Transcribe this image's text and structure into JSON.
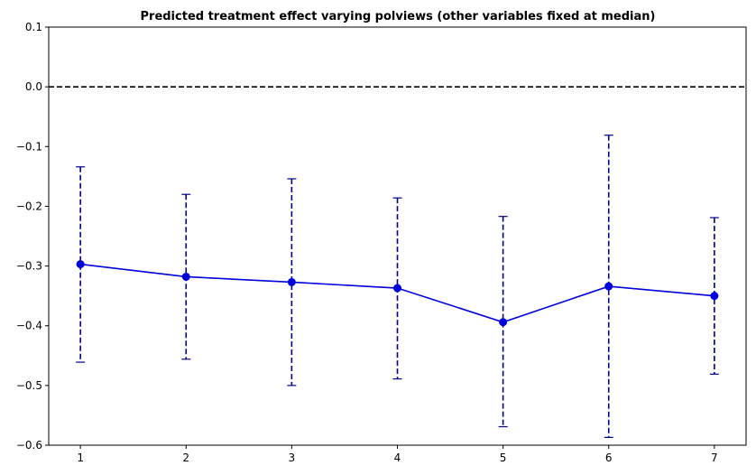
{
  "chart_data": {
    "type": "line",
    "title": "Predicted treatment effect varying polviews (other variables fixed at median)",
    "xlabel": "",
    "ylabel": "",
    "x": [
      1,
      2,
      3,
      4,
      5,
      6,
      7
    ],
    "xlim": [
      0.7,
      7.3
    ],
    "ylim": [
      -0.6,
      0.1
    ],
    "yticks": [
      0.1,
      0.0,
      -0.1,
      -0.2,
      -0.3,
      -0.4,
      -0.5,
      -0.6
    ],
    "ytick_labels": [
      "0.1",
      "0.0",
      "−0.1",
      "−0.2",
      "−0.3",
      "−0.4",
      "−0.5",
      "−0.6"
    ],
    "xtick_labels": [
      "1",
      "2",
      "3",
      "4",
      "5",
      "6",
      "7"
    ],
    "series": [
      {
        "values": [
          -0.297,
          -0.318,
          -0.327,
          -0.337,
          -0.394,
          -0.334,
          -0.35
        ],
        "lower": [
          -0.461,
          -0.456,
          -0.5,
          -0.489,
          -0.569,
          -0.587,
          -0.481
        ],
        "upper": [
          -0.134,
          -0.18,
          -0.154,
          -0.186,
          -0.217,
          -0.081,
          -0.219
        ]
      }
    ],
    "reference_line": {
      "y": 0.0,
      "style": "dashed",
      "color": "#000000"
    },
    "colors": {
      "line": "#0000dd",
      "errorbar": "#00008b"
    },
    "grid": false,
    "legend": "none"
  }
}
